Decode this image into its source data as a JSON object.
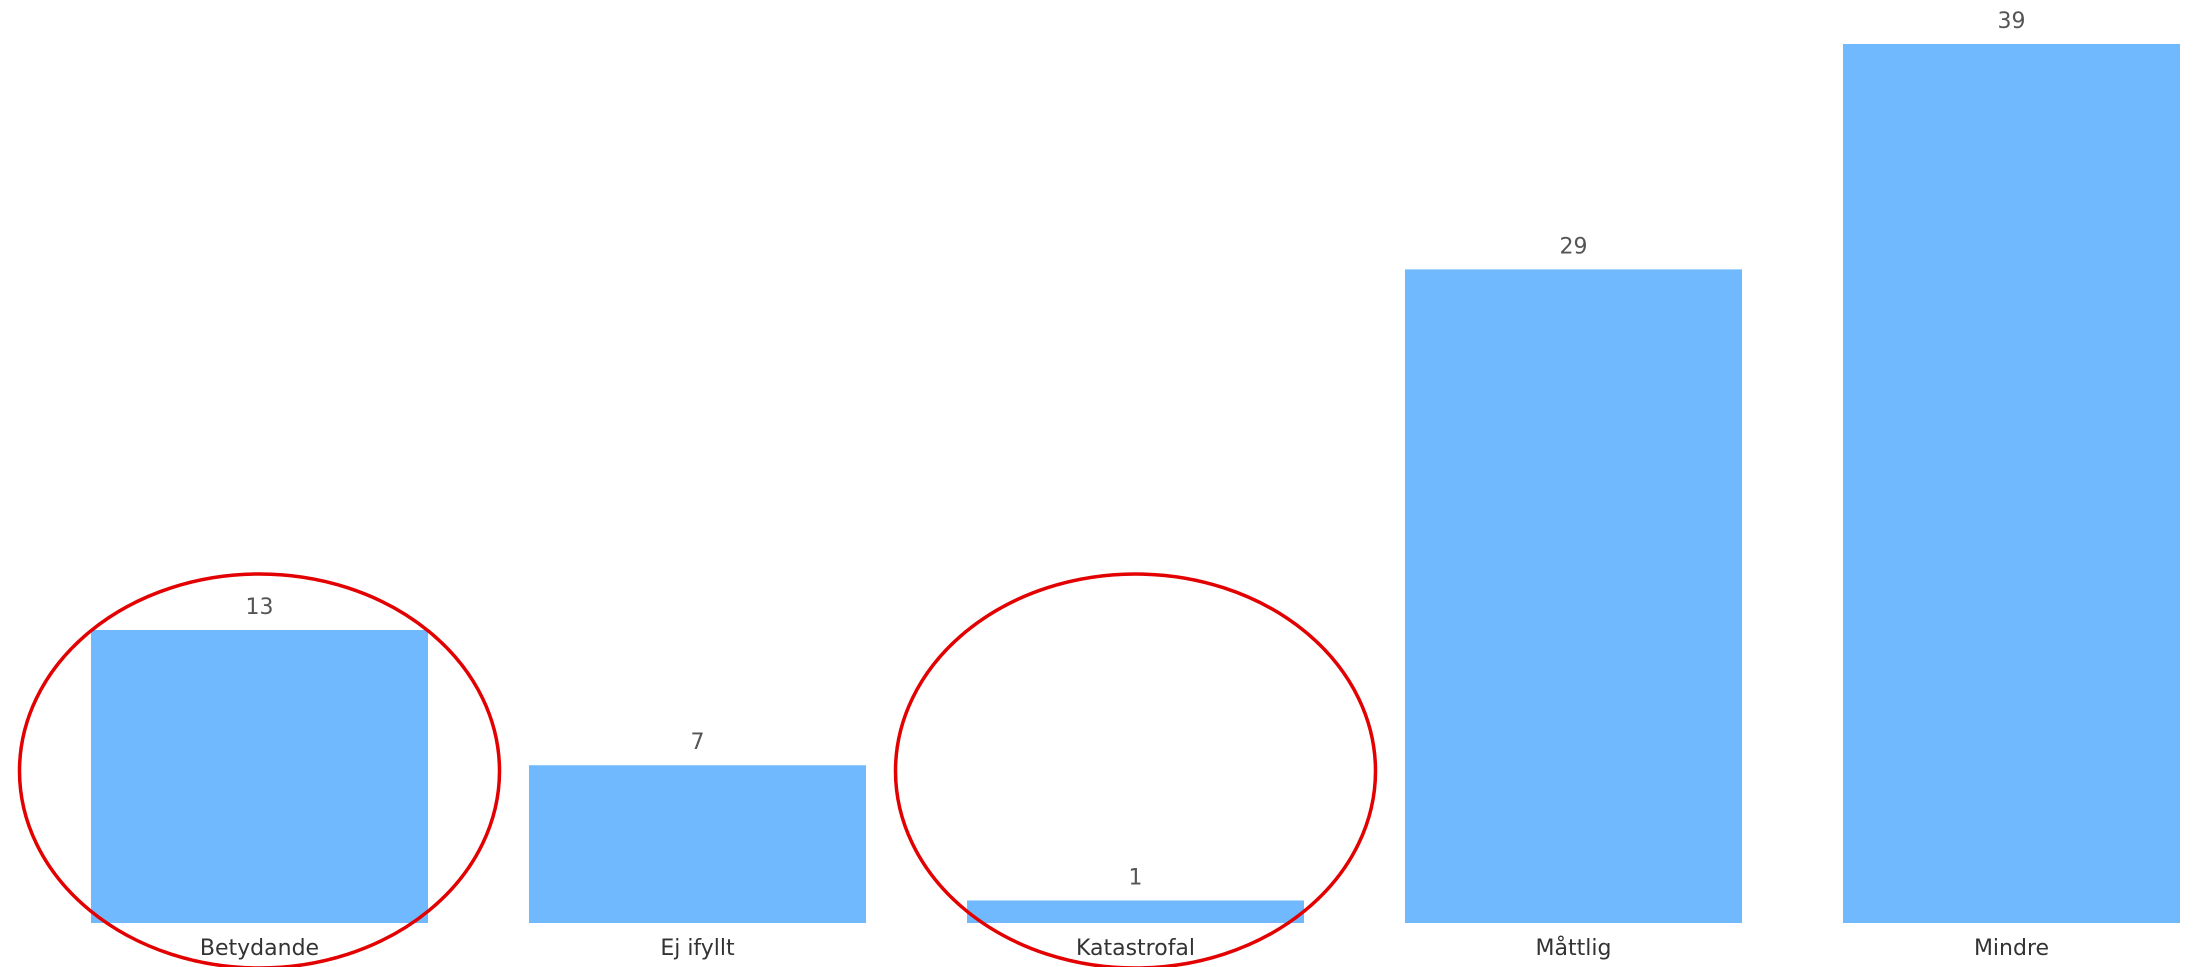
{
  "colors": {
    "bar": "#70B9FF",
    "annotation": "#E20000",
    "data_label": "#555555",
    "category_label": "#333333",
    "background": "#FFFFFF"
  },
  "chart_data": {
    "type": "bar",
    "title": "",
    "xlabel": "",
    "ylabel": "",
    "categories": [
      "Betydande",
      "Ej ifyllt",
      "Katastrofal",
      "Måttlig",
      "Mindre"
    ],
    "values": [
      13,
      7,
      1,
      29,
      39
    ],
    "data_labels": [
      "13",
      "7",
      "1",
      "29",
      "39"
    ],
    "ylim": [
      0,
      39
    ],
    "grid": false,
    "legend": "none",
    "annotations": [
      {
        "shape": "ellipse",
        "category": "Betydande"
      },
      {
        "shape": "ellipse",
        "category": "Katastrofal"
      }
    ]
  }
}
